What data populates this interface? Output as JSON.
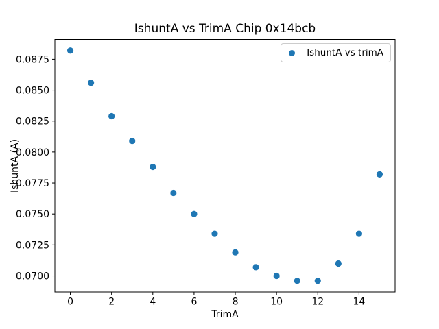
{
  "chart_data": {
    "type": "scatter",
    "title": "IshuntA vs TrimA Chip 0x14bcb",
    "xlabel": "TrimA",
    "ylabel": "IshuntA (A)",
    "legend_label": "IshuntA vs trimA",
    "legend_position": "upper right",
    "marker_color": "#1f77b4",
    "grid": false,
    "x": [
      0,
      1,
      2,
      3,
      4,
      5,
      6,
      7,
      8,
      9,
      10,
      11,
      12,
      13,
      14,
      15
    ],
    "y": [
      0.0882,
      0.0856,
      0.0829,
      0.0809,
      0.0788,
      0.0767,
      0.075,
      0.0734,
      0.0719,
      0.0707,
      0.07,
      0.0696,
      0.0696,
      0.071,
      0.0734,
      0.0782
    ],
    "xticks": [
      0,
      2,
      4,
      6,
      8,
      10,
      12,
      14
    ],
    "yticks": [
      0.07,
      0.0725,
      0.075,
      0.0775,
      0.08,
      0.0825,
      0.085,
      0.0875
    ],
    "ytick_decimals": 4,
    "xlim": [
      -0.75,
      15.75
    ],
    "ylim": [
      0.0687,
      0.0891
    ]
  }
}
